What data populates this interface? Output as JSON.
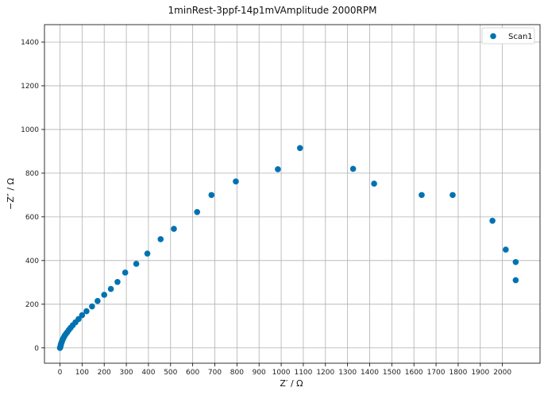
{
  "chart_data": {
    "type": "scatter",
    "title": "1minRest-3ppf-14p1mVAmplitude 2000RPM",
    "xlabel": "Z′ / Ω",
    "ylabel": "−Z″ / Ω",
    "xlim": [
      -70,
      2170
    ],
    "ylim": [
      -70,
      1480
    ],
    "xticks": [
      0,
      100,
      200,
      300,
      400,
      500,
      600,
      700,
      800,
      900,
      1000,
      1100,
      1200,
      1300,
      1400,
      1500,
      1600,
      1700,
      1800,
      1900,
      2000
    ],
    "yticks": [
      0,
      200,
      400,
      600,
      800,
      1000,
      1200,
      1400
    ],
    "grid": true,
    "legend_position": "top-right",
    "series": [
      {
        "name": "Scan1",
        "color": "#0072b2",
        "x": [
          0,
          1,
          2,
          3,
          4,
          5,
          6,
          8,
          10,
          12,
          15,
          18,
          22,
          27,
          33,
          40,
          48,
          58,
          70,
          84,
          100,
          120,
          145,
          170,
          200,
          230,
          260,
          295,
          345,
          395,
          455,
          515,
          620,
          685,
          795,
          985,
          1085,
          1325,
          1420,
          1635,
          1775,
          1955,
          2015,
          2060,
          2060
        ],
        "y": [
          0,
          3,
          6,
          10,
          14,
          18,
          22,
          27,
          32,
          38,
          44,
          50,
          57,
          64,
          72,
          82,
          92,
          104,
          117,
          132,
          150,
          168,
          190,
          215,
          243,
          270,
          302,
          345,
          385,
          432,
          498,
          545,
          622,
          700,
          762,
          818,
          915,
          820,
          752,
          700,
          700,
          582,
          450,
          393,
          310
        ]
      }
    ]
  }
}
